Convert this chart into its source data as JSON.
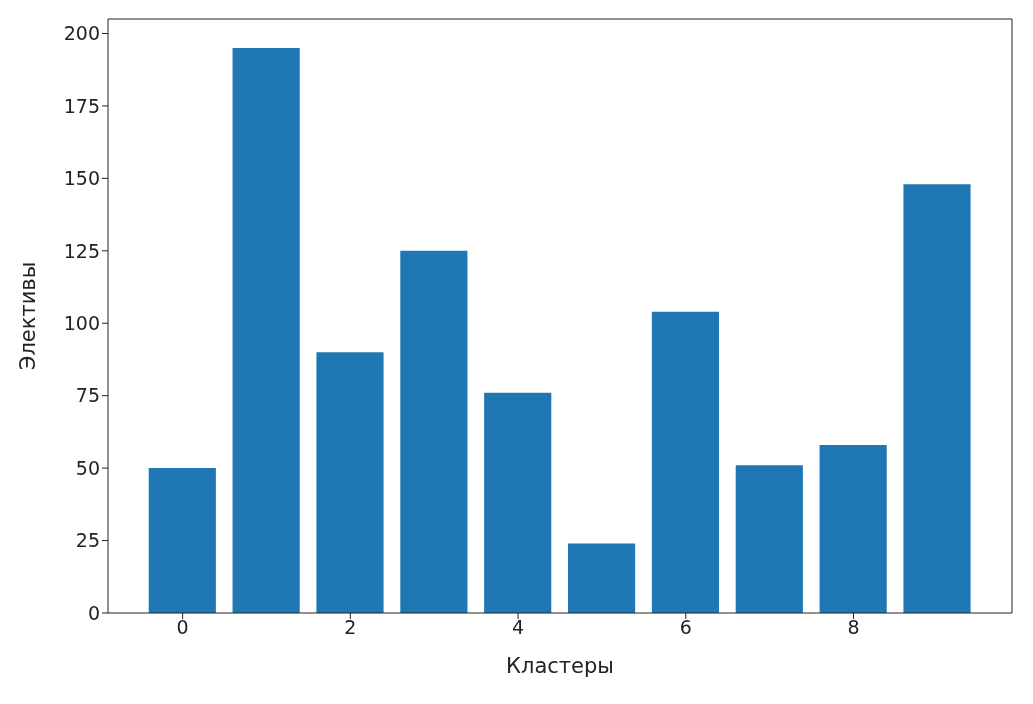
{
  "chart_data": {
    "type": "bar",
    "xlabel": "Кластеры",
    "ylabel": "Элективы",
    "x": [
      0,
      1,
      2,
      3,
      4,
      5,
      6,
      7,
      8,
      9
    ],
    "values": [
      50,
      195,
      90,
      125,
      76,
      24,
      104,
      51,
      58,
      148
    ],
    "color": "#1f77b4",
    "xlim": [
      -0.89,
      9.89
    ],
    "xticks": [
      0,
      2,
      4,
      6,
      8
    ],
    "ylim": [
      0,
      205
    ],
    "yticks": [
      0,
      25,
      50,
      75,
      100,
      125,
      150,
      175,
      200
    ],
    "grid": false,
    "legend": false
  }
}
